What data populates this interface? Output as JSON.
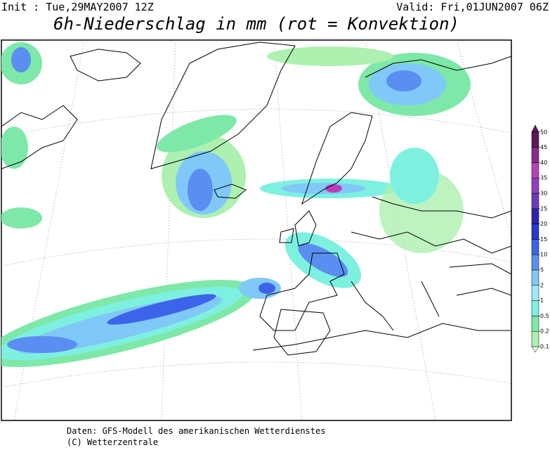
{
  "header": {
    "init": "Init : Tue,29MAY2007 12Z",
    "valid": "Valid: Fri,01JUN2007 06Z",
    "title": "6h-Niederschlag in mm (rot = Konvektion)"
  },
  "colorbar": {
    "levels": [
      0.1,
      0.2,
      0.5,
      1,
      2,
      5,
      10,
      15,
      20,
      25,
      30,
      35,
      40,
      45,
      50
    ],
    "colors": [
      "#e8fbe8",
      "#aef0b0",
      "#7ee8a8",
      "#7ef0e0",
      "#a0e8f8",
      "#80c8f8",
      "#5a8ef0",
      "#3c64e8",
      "#2838d0",
      "#3020b0",
      "#6a3cc0",
      "#9040c0",
      "#b840b8",
      "#8a2a8a",
      "#5a1a5a"
    ]
  },
  "footer": {
    "source": "Daten: GFS-Modell des amerikanischen Wetterdienstes",
    "copyright": "(C) Wetterzentrale"
  }
}
